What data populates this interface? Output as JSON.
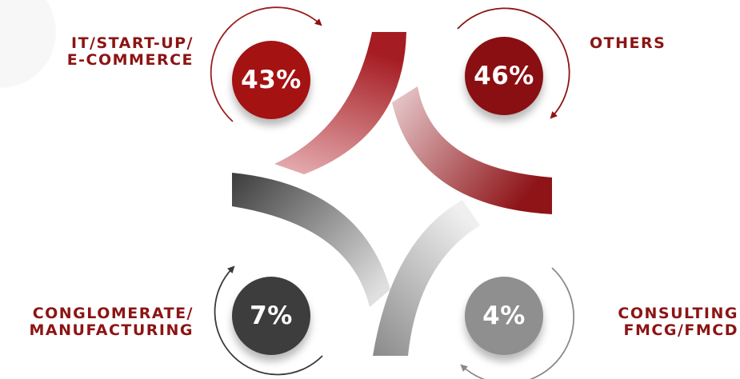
{
  "segments": [
    {
      "id": "it-startup-ecommerce",
      "percent": "43%",
      "value": 43,
      "label_lines": [
        "IT/START-UP/",
        "E-COMMERCE"
      ],
      "circle_color": "#a51212",
      "label_color": "#8c1414"
    },
    {
      "id": "others",
      "percent": "46%",
      "value": 46,
      "label_lines": [
        "OTHERS"
      ],
      "circle_color": "#8a0f12",
      "label_color": "#8c1414"
    },
    {
      "id": "conglomerate-manufacturing",
      "percent": "7%",
      "value": 7,
      "label_lines": [
        "CONGLOMERATE/",
        "MANUFACTURING"
      ],
      "circle_color": "#3d3d3d",
      "label_color": "#8c1414"
    },
    {
      "id": "consulting-fmcg-fmcd",
      "percent": "4%",
      "value": 4,
      "label_lines": [
        "CONSULTING",
        "FMCG/FMCD"
      ],
      "circle_color": "#8f8f8f",
      "label_color": "#8c1414"
    }
  ]
}
